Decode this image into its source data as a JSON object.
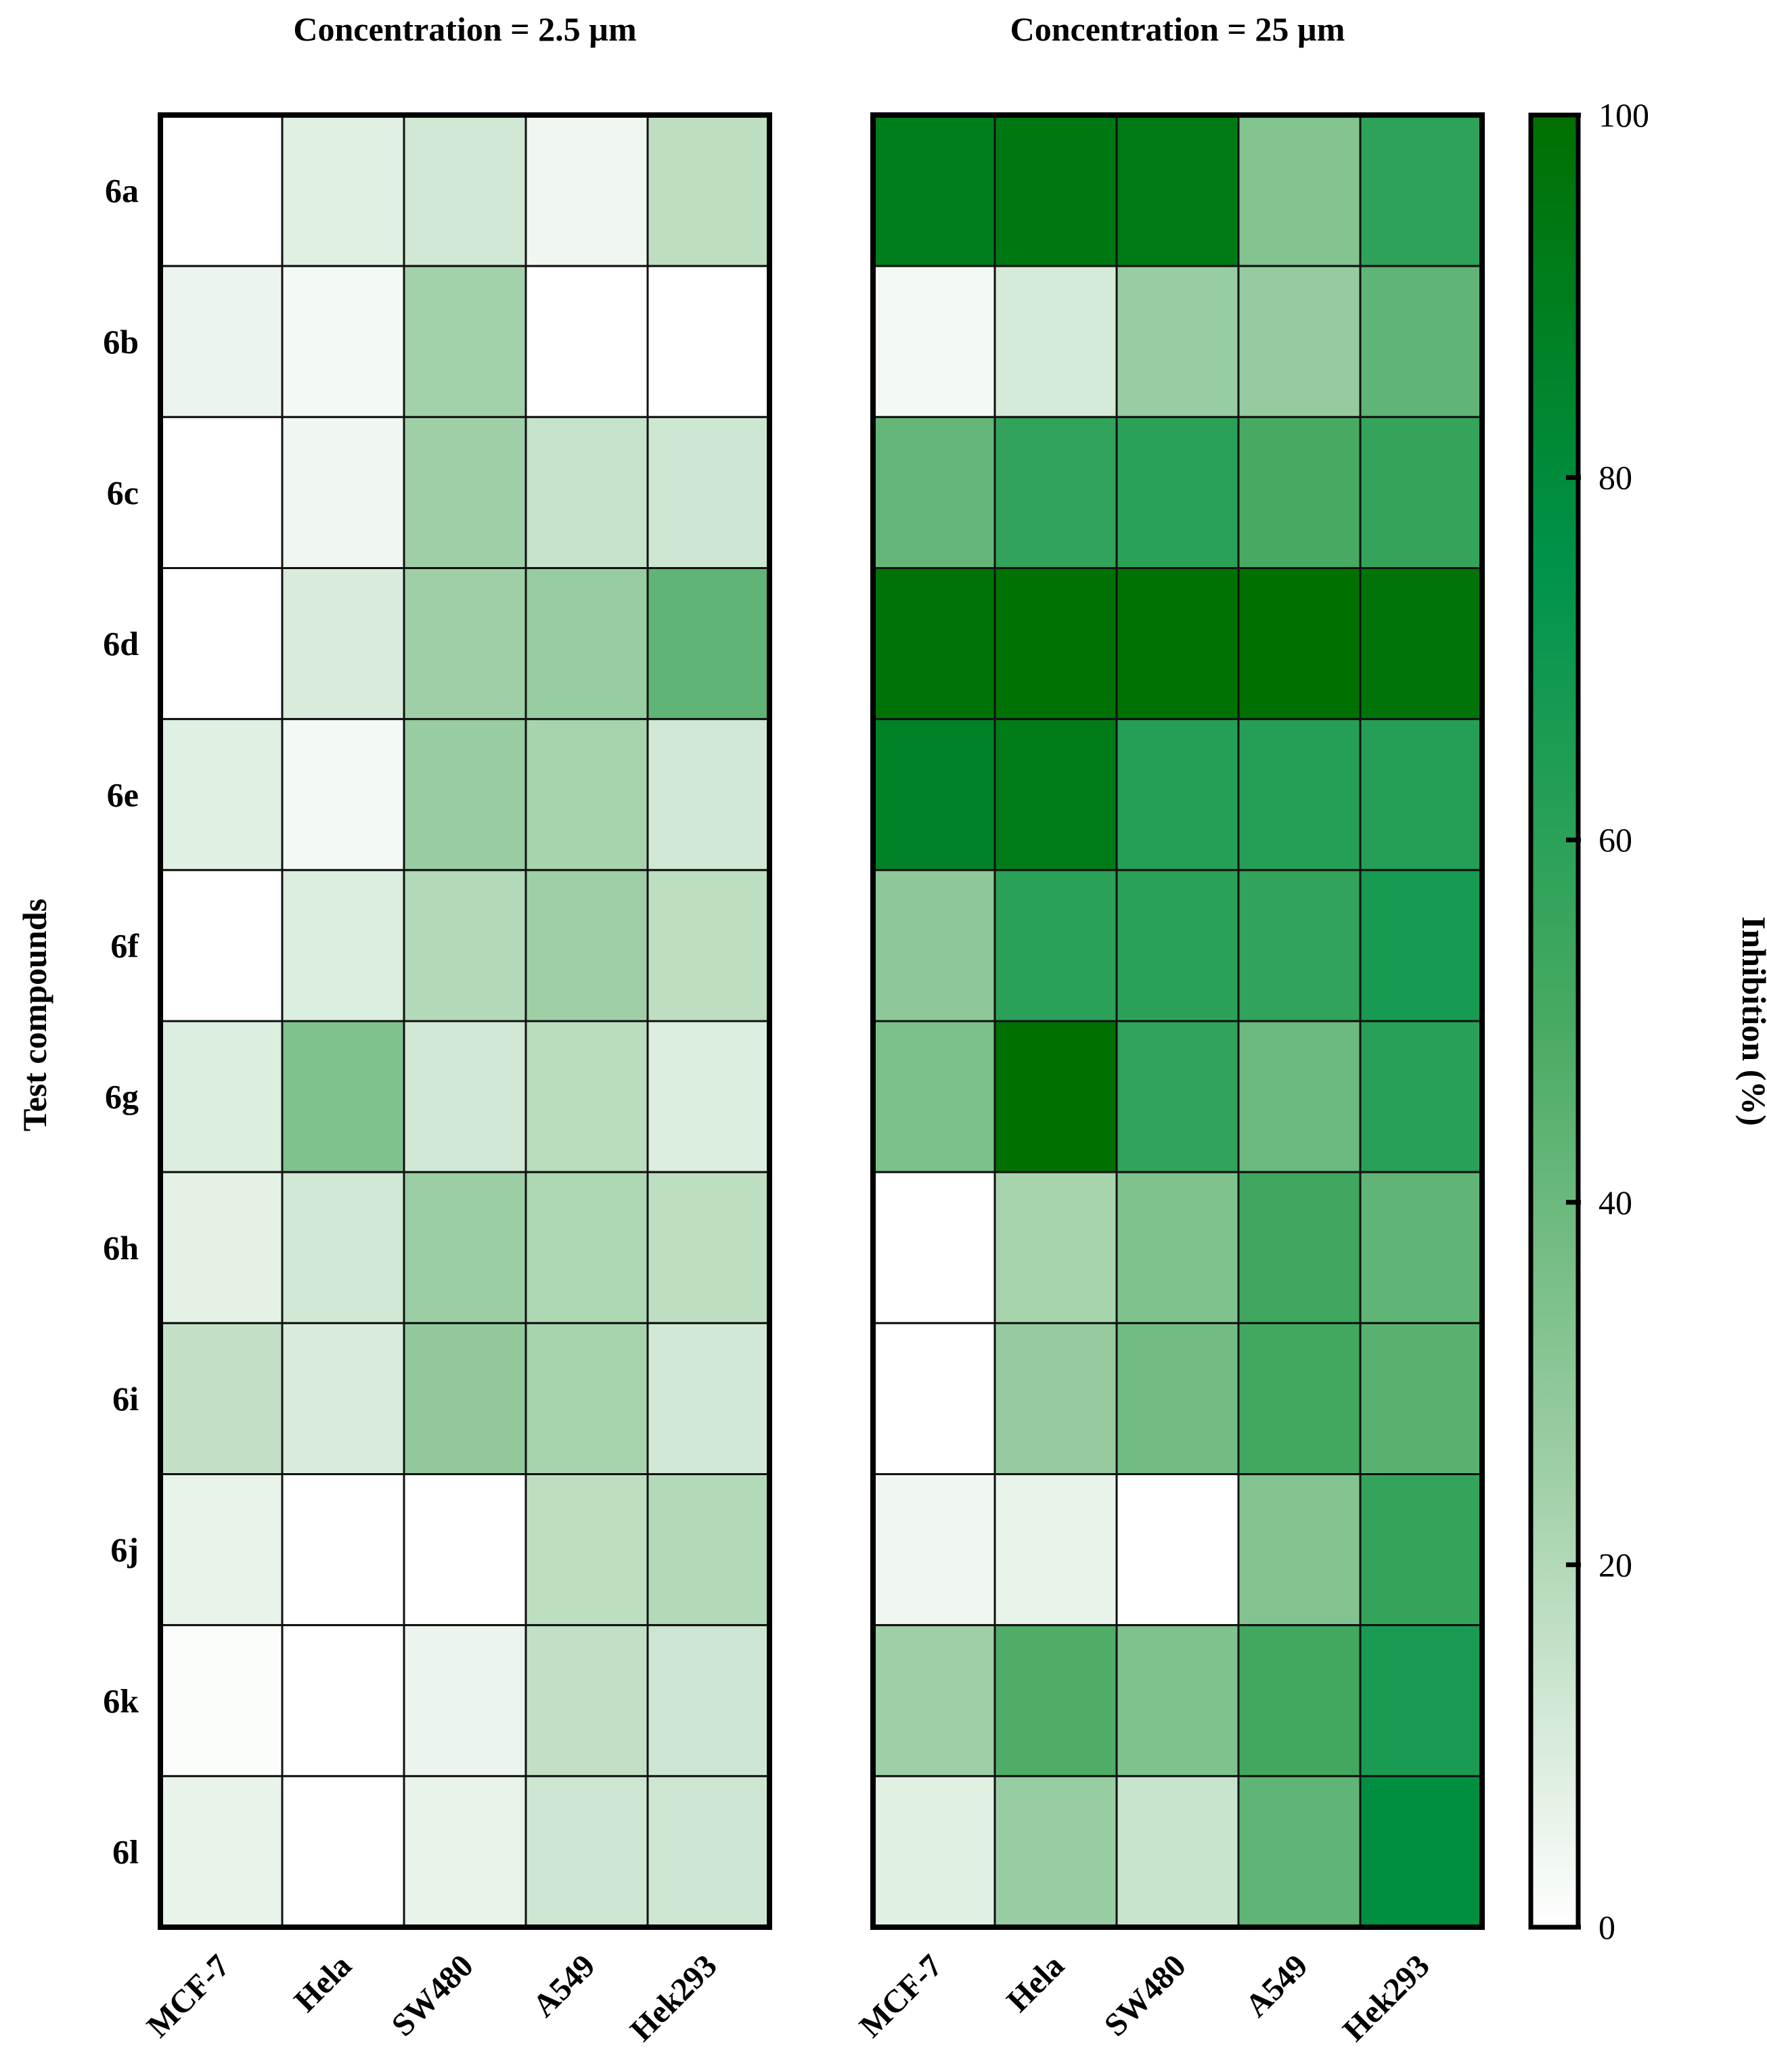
{
  "chart_data": {
    "type": "heatmap",
    "y_axis_label": "Test compounds",
    "compounds": [
      "6a",
      "6b",
      "6c",
      "6d",
      "6e",
      "6f",
      "6g",
      "6h",
      "6i",
      "6j",
      "6k",
      "6l"
    ],
    "cell_lines": [
      "MCF-7",
      "Hela",
      "SW480",
      "A549",
      "Hek293"
    ],
    "panels": [
      {
        "title": "Concentration = 2.5 µm",
        "values": [
          [
            0,
            8,
            12,
            4,
            17
          ],
          [
            5,
            3,
            24,
            0,
            0
          ],
          [
            0,
            4,
            25,
            15,
            13
          ],
          [
            0,
            10,
            25,
            27,
            43
          ],
          [
            8,
            3,
            27,
            23,
            12
          ],
          [
            0,
            9,
            20,
            25,
            17
          ],
          [
            9,
            34,
            12,
            18,
            9
          ],
          [
            7,
            12,
            26,
            21,
            17
          ],
          [
            16,
            10,
            29,
            23,
            12
          ],
          [
            6,
            0,
            0,
            17,
            20
          ],
          [
            1,
            0,
            5,
            16,
            13
          ],
          [
            6,
            0,
            6,
            13,
            13
          ]
        ]
      },
      {
        "title": "Concentration = 25 µm",
        "values": [
          [
            91,
            94,
            93,
            33,
            59
          ],
          [
            3,
            11,
            27,
            28,
            43
          ],
          [
            42,
            58,
            60,
            50,
            57
          ],
          [
            98,
            99,
            99,
            100,
            97
          ],
          [
            87,
            92,
            62,
            62,
            62
          ],
          [
            30,
            60,
            60,
            58,
            67
          ],
          [
            35,
            100,
            58,
            40,
            61
          ],
          [
            0,
            23,
            34,
            53,
            43
          ],
          [
            0,
            28,
            38,
            52,
            45
          ],
          [
            4,
            6,
            0,
            33,
            57
          ],
          [
            25,
            48,
            34,
            52,
            66
          ],
          [
            8,
            27,
            14,
            43,
            78
          ]
        ]
      }
    ],
    "colorbar": {
      "label": "Inhibition (%)",
      "min": 0,
      "max": 100,
      "ticks": [
        0,
        20,
        40,
        60,
        80,
        100
      ],
      "colors": [
        "#ffffff",
        "#9fcfa6",
        "#48aa62",
        "#00934a",
        "#007000"
      ]
    }
  }
}
